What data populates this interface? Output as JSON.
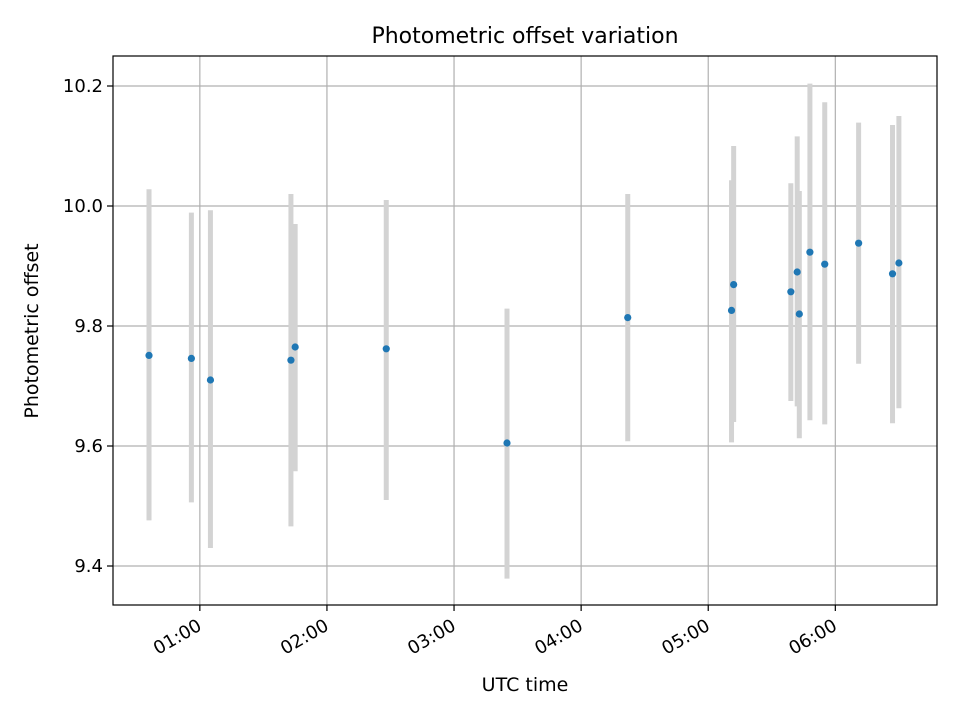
{
  "chart_data": {
    "type": "scatter",
    "title": "Photometric offset variation",
    "xlabel": "UTC time",
    "ylabel": "Photometric offset",
    "x_unit": "HH:MM UTC",
    "xlim": [
      "00:19",
      "06:48"
    ],
    "ylim": [
      9.335,
      10.25
    ],
    "x_ticks": [
      "01:00",
      "02:00",
      "03:00",
      "04:00",
      "05:00",
      "06:00"
    ],
    "y_ticks": [
      9.4,
      9.6,
      9.8,
      10.0,
      10.2
    ],
    "y_tick_labels": [
      "9.4",
      "9.6",
      "9.8",
      "10.0",
      "10.2"
    ],
    "grid": true,
    "legend": "none",
    "colors": {
      "points": "#1f77b4",
      "error_bars": "#d3d3d3",
      "grid": "#b0b0b0"
    },
    "points": [
      {
        "time": "00:36",
        "y": 9.751,
        "err_low": 9.476,
        "err_high": 10.028
      },
      {
        "time": "00:56",
        "y": 9.746,
        "err_low": 9.506,
        "err_high": 9.989
      },
      {
        "time": "01:05",
        "y": 9.71,
        "err_low": 9.43,
        "err_high": 9.993
      },
      {
        "time": "01:43",
        "y": 9.743,
        "err_low": 9.466,
        "err_high": 10.02
      },
      {
        "time": "01:45",
        "y": 9.765,
        "err_low": 9.558,
        "err_high": 9.97
      },
      {
        "time": "02:28",
        "y": 9.762,
        "err_low": 9.51,
        "err_high": 10.01
      },
      {
        "time": "03:25",
        "y": 9.605,
        "err_low": 9.379,
        "err_high": 9.829
      },
      {
        "time": "04:22",
        "y": 9.814,
        "err_low": 9.608,
        "err_high": 10.02
      },
      {
        "time": "05:11",
        "y": 9.826,
        "err_low": 9.606,
        "err_high": 10.043
      },
      {
        "time": "05:12",
        "y": 9.869,
        "err_low": 9.64,
        "err_high": 10.1
      },
      {
        "time": "05:39",
        "y": 9.857,
        "err_low": 9.675,
        "err_high": 10.038
      },
      {
        "time": "05:42",
        "y": 9.89,
        "err_low": 9.666,
        "err_high": 10.116
      },
      {
        "time": "05:43",
        "y": 9.82,
        "err_low": 9.613,
        "err_high": 10.025
      },
      {
        "time": "05:48",
        "y": 9.923,
        "err_low": 9.643,
        "err_high": 10.204
      },
      {
        "time": "05:55",
        "y": 9.903,
        "err_low": 9.636,
        "err_high": 10.173
      },
      {
        "time": "06:11",
        "y": 9.938,
        "err_low": 9.737,
        "err_high": 10.139
      },
      {
        "time": "06:27",
        "y": 9.887,
        "err_low": 9.638,
        "err_high": 10.135
      },
      {
        "time": "06:30",
        "y": 9.905,
        "err_low": 9.663,
        "err_high": 10.15
      }
    ]
  }
}
